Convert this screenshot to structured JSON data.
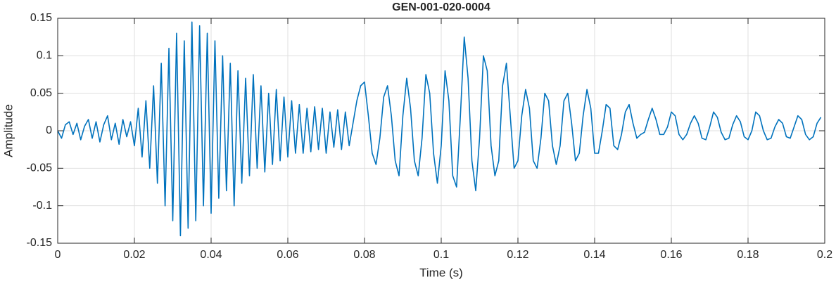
{
  "chart_data": {
    "type": "line",
    "title": "GEN-001-020-0004",
    "x_label": "Time (s)",
    "y_label": "Amplitude",
    "xlim": [
      0,
      0.2
    ],
    "ylim": [
      -0.15,
      0.15
    ],
    "xticks": [
      0,
      0.02,
      0.04,
      0.06,
      0.08,
      0.1,
      0.12,
      0.14,
      0.16,
      0.18,
      0.2
    ],
    "yticks": [
      -0.15,
      -0.1,
      -0.05,
      0,
      0.05,
      0.1,
      0.15
    ],
    "grid": true,
    "series": [
      {
        "name": "Amplitude",
        "color": "#0072bd",
        "x": [
          0,
          0.001,
          0.002,
          0.003,
          0.004,
          0.005,
          0.006,
          0.007,
          0.008,
          0.009,
          0.01,
          0.011,
          0.012,
          0.013,
          0.014,
          0.015,
          0.016,
          0.017,
          0.018,
          0.019,
          0.02,
          0.021,
          0.022,
          0.023,
          0.024,
          0.025,
          0.026,
          0.027,
          0.028,
          0.029,
          0.03,
          0.031,
          0.032,
          0.033,
          0.034,
          0.035,
          0.036,
          0.037,
          0.038,
          0.039,
          0.04,
          0.041,
          0.042,
          0.043,
          0.044,
          0.045,
          0.046,
          0.047,
          0.048,
          0.049,
          0.05,
          0.051,
          0.052,
          0.053,
          0.054,
          0.055,
          0.056,
          0.057,
          0.058,
          0.059,
          0.06,
          0.061,
          0.062,
          0.063,
          0.064,
          0.065,
          0.066,
          0.067,
          0.068,
          0.069,
          0.07,
          0.071,
          0.072,
          0.073,
          0.074,
          0.075,
          0.076,
          0.077,
          0.078,
          0.079,
          0.08,
          0.081,
          0.082,
          0.083,
          0.084,
          0.085,
          0.086,
          0.087,
          0.088,
          0.089,
          0.09,
          0.091,
          0.092,
          0.093,
          0.094,
          0.095,
          0.096,
          0.097,
          0.098,
          0.099,
          0.1,
          0.101,
          0.102,
          0.103,
          0.104,
          0.105,
          0.106,
          0.107,
          0.108,
          0.109,
          0.11,
          0.111,
          0.112,
          0.113,
          0.114,
          0.115,
          0.116,
          0.117,
          0.118,
          0.119,
          0.12,
          0.121,
          0.122,
          0.123,
          0.124,
          0.125,
          0.126,
          0.127,
          0.128,
          0.129,
          0.13,
          0.131,
          0.132,
          0.133,
          0.134,
          0.135,
          0.136,
          0.137,
          0.138,
          0.139,
          0.14,
          0.141,
          0.142,
          0.143,
          0.144,
          0.145,
          0.146,
          0.147,
          0.148,
          0.149,
          0.15,
          0.151,
          0.152,
          0.153,
          0.154,
          0.155,
          0.156,
          0.157,
          0.158,
          0.159,
          0.16,
          0.161,
          0.162,
          0.163,
          0.164,
          0.165,
          0.166,
          0.167,
          0.168,
          0.169,
          0.17,
          0.171,
          0.172,
          0.173,
          0.174,
          0.175,
          0.176,
          0.177,
          0.178,
          0.179,
          0.18,
          0.181,
          0.182,
          0.183,
          0.184,
          0.185,
          0.186,
          0.187,
          0.188,
          0.189,
          0.19,
          0.191,
          0.192,
          0.193,
          0.194,
          0.195,
          0.196,
          0.197,
          0.198,
          0.199
        ],
        "values": [
          0,
          -0.01,
          0.008,
          0.012,
          -0.005,
          0.01,
          -0.012,
          0.006,
          0.015,
          -0.01,
          0.012,
          -0.015,
          0.008,
          0.02,
          -0.012,
          0.01,
          -0.018,
          0.015,
          -0.008,
          0.012,
          -0.02,
          0.03,
          -0.035,
          0.04,
          -0.05,
          0.06,
          -0.07,
          0.09,
          -0.1,
          0.11,
          -0.12,
          0.13,
          -0.14,
          0.12,
          -0.13,
          0.145,
          -0.12,
          0.14,
          -0.1,
          0.13,
          -0.11,
          0.12,
          -0.09,
          0.1,
          -0.08,
          0.09,
          -0.1,
          0.08,
          -0.07,
          0.07,
          -0.06,
          0.075,
          -0.05,
          0.06,
          -0.055,
          0.05,
          -0.045,
          0.055,
          -0.04,
          0.045,
          -0.035,
          0.04,
          -0.03,
          0.035,
          -0.03,
          0.03,
          -0.028,
          0.032,
          -0.025,
          0.03,
          -0.03,
          0.025,
          -0.022,
          0.028,
          -0.025,
          0.025,
          -0.02,
          0.01,
          0.04,
          0.06,
          0.065,
          0.02,
          -0.03,
          -0.045,
          -0.01,
          0.045,
          0.06,
          0.02,
          -0.04,
          -0.06,
          0.02,
          0.07,
          0.03,
          -0.04,
          -0.06,
          -0.01,
          0.075,
          0.05,
          -0.03,
          -0.07,
          -0.02,
          0.08,
          0.04,
          -0.06,
          -0.075,
          0.02,
          0.125,
          0.07,
          -0.04,
          -0.08,
          -0.01,
          0.1,
          0.08,
          -0.02,
          -0.06,
          -0.04,
          0.06,
          0.09,
          0.02,
          -0.05,
          -0.04,
          0.02,
          0.055,
          0.03,
          -0.04,
          -0.05,
          -0.01,
          0.05,
          0.04,
          -0.02,
          -0.045,
          -0.02,
          0.04,
          0.05,
          0.01,
          -0.04,
          -0.03,
          0.02,
          0.055,
          0.03,
          -0.03,
          -0.03,
          0,
          0.035,
          0.03,
          -0.02,
          -0.025,
          -0.005,
          0.025,
          0.035,
          0.01,
          -0.01,
          -0.005,
          -0.002,
          0.015,
          0.03,
          0.015,
          -0.005,
          -0.005,
          0.005,
          0.025,
          0.02,
          -0.005,
          -0.012,
          -0.005,
          0.01,
          0.02,
          0.01,
          -0.01,
          -0.012,
          0.005,
          0.025,
          0.018,
          -0.002,
          -0.012,
          -0.01,
          0.008,
          0.02,
          0.012,
          -0.008,
          -0.012,
          0,
          0.025,
          0.02,
          0,
          -0.012,
          -0.01,
          0.005,
          0.015,
          0.01,
          -0.008,
          -0.01,
          0.005,
          0.02,
          0.015,
          -0.005,
          -0.012,
          -0.008,
          0.01,
          0.018
        ]
      }
    ]
  }
}
